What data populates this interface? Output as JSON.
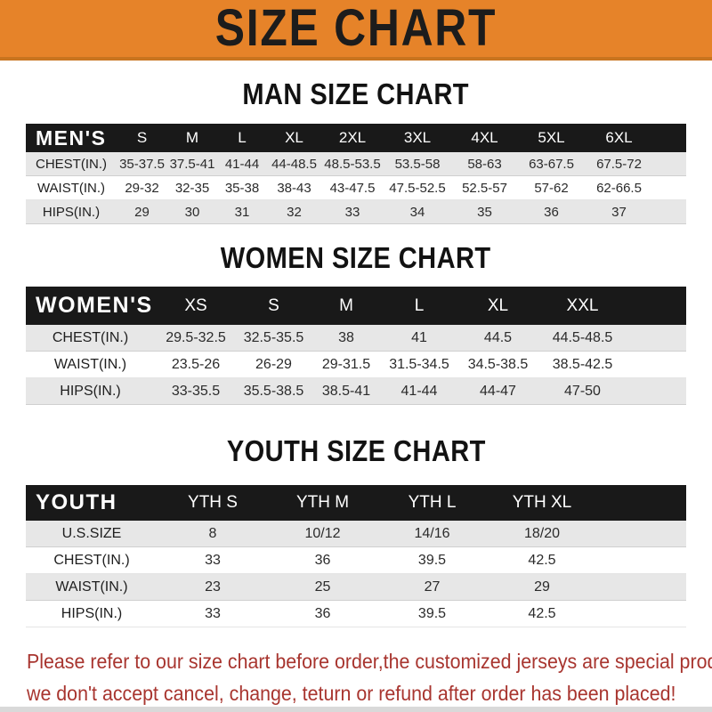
{
  "banner": {
    "title": "SIZE CHART",
    "background": "#E68329",
    "text_color": "#1C1C1C"
  },
  "sections": [
    {
      "heading": "MAN SIZE CHART",
      "table": {
        "label": "MEN'S",
        "columns": [
          "S",
          "M",
          "L",
          "XL",
          "2XL",
          "3XL",
          "4XL",
          "5XL",
          "6XL"
        ],
        "rows": [
          {
            "label": "CHEST(IN.)",
            "values": [
              "35-37.5",
              "37.5-41",
              "41-44",
              "44-48.5",
              "48.5-53.5",
              "53.5-58",
              "58-63",
              "63-67.5",
              "67.5-72"
            ]
          },
          {
            "label": "WAIST(IN.)",
            "values": [
              "29-32",
              "32-35",
              "35-38",
              "38-43",
              "43-47.5",
              "47.5-52.5",
              "52.5-57",
              "57-62",
              "62-66.5"
            ]
          },
          {
            "label": "HIPS(IN.)",
            "values": [
              "29",
              "30",
              "31",
              "32",
              "33",
              "34",
              "35",
              "36",
              "37"
            ]
          }
        ]
      }
    },
    {
      "heading": "WOMEN SIZE CHART",
      "table": {
        "label": "WOMEN'S",
        "columns": [
          "XS",
          "S",
          "M",
          "L",
          "XL",
          "XXL"
        ],
        "rows": [
          {
            "label": "CHEST(IN.)",
            "values": [
              "29.5-32.5",
              "32.5-35.5",
              "38",
              "41",
              "44.5",
              "44.5-48.5"
            ]
          },
          {
            "label": "WAIST(IN.)",
            "values": [
              "23.5-26",
              "26-29",
              "29-31.5",
              "31.5-34.5",
              "34.5-38.5",
              "38.5-42.5"
            ]
          },
          {
            "label": "HIPS(IN.)",
            "values": [
              "33-35.5",
              "35.5-38.5",
              "38.5-41",
              "41-44",
              "44-47",
              "47-50"
            ]
          }
        ]
      }
    },
    {
      "heading": "YOUTH SIZE CHART",
      "table": {
        "label": "YOUTH",
        "columns": [
          "YTH S",
          "YTH M",
          "YTH L",
          "YTH XL"
        ],
        "rows": [
          {
            "label": "U.S.SIZE",
            "values": [
              "8",
              "10/12",
              "14/16",
              "18/20"
            ]
          },
          {
            "label": "CHEST(IN.)",
            "values": [
              "33",
              "36",
              "39.5",
              "42.5"
            ]
          },
          {
            "label": "WAIST(IN.)",
            "values": [
              "23",
              "25",
              "27",
              "29"
            ]
          },
          {
            "label": "HIPS(IN.)",
            "values": [
              "33",
              "36",
              "39.5",
              "42.5"
            ]
          }
        ]
      }
    }
  ],
  "footer": {
    "lines": [
      "Please refer to our size chart before order,the customized jerseys are special products,",
      "we don't accept cancel, change, teturn or refund after order has been placed!"
    ],
    "text_color": "#A8352F"
  },
  "colors": {
    "banner_orange": "#E68329",
    "banner_edge": "#C8741F",
    "header_bar": "#191919",
    "stripe_row": "#E7E7E7"
  }
}
